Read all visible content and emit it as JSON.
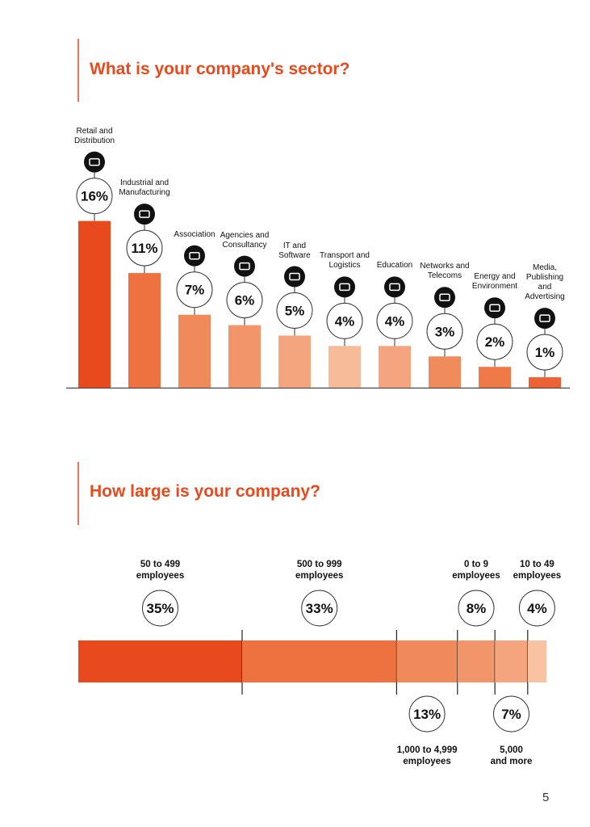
{
  "chart_data": [
    {
      "type": "bar",
      "title": "What is your company's sector?",
      "categories": [
        "Retail and\nDistribution",
        "Industrial and\nManufacturing",
        "Association",
        "Agencies and\nConsultancy",
        "IT and\nSoftware",
        "Transport and\nLogistics",
        "Education",
        "Networks and\nTelecoms",
        "Energy and\nEnvironment",
        "Media, Publishing\nand Advertising"
      ],
      "values": [
        16,
        11,
        7,
        6,
        5,
        4,
        4,
        3,
        2,
        1
      ],
      "value_labels": [
        "16%",
        "11%",
        "7%",
        "6%",
        "5%",
        "4%",
        "4%",
        "3%",
        "2%",
        "1%"
      ],
      "colors": [
        "#e8491d",
        "#ee7240",
        "#f08a5a",
        "#f3956a",
        "#f5a57e",
        "#f8bb9a",
        "#f4a47f",
        "#f08c5c",
        "#ef7a48",
        "#ec6234"
      ]
    },
    {
      "type": "stacked-bar",
      "title": "How large is your company?",
      "categories": [
        "50 to 499\nemployees",
        "500 to 999\nemployees",
        "1,000 to 4,999\nemployees",
        "0 to 9\nemployees",
        "5,000\nand more",
        "10 to 49\nemployees"
      ],
      "values": [
        35,
        33,
        13,
        8,
        7,
        4
      ],
      "value_labels": [
        "35%",
        "33%",
        "13%",
        "8%",
        "7%",
        "4%"
      ],
      "colors": [
        "#e8491d",
        "#ee7240",
        "#f08a5a",
        "#f3956a",
        "#f5a57e",
        "#f8c2a3"
      ]
    }
  ],
  "page_number": 5
}
